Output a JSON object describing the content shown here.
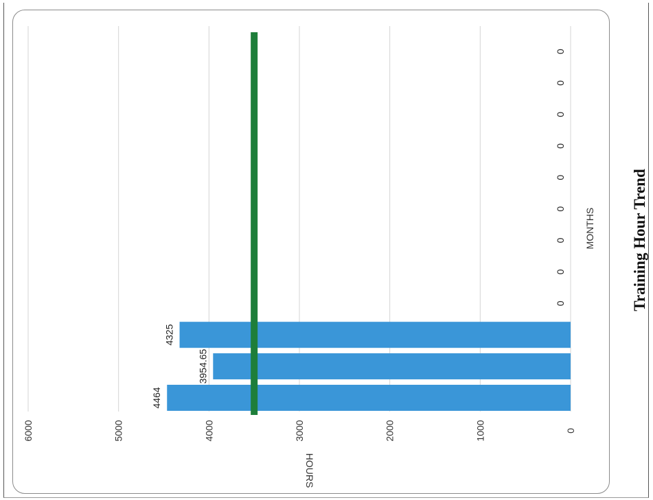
{
  "chart_data": {
    "type": "bar",
    "orientation": "horizontal",
    "rotated_page": true,
    "title": "Training Hour Trend",
    "xlabel": "HOURS",
    "ylabel": "MONTHS",
    "xlim": [
      0,
      6000
    ],
    "x_ticks": [
      0,
      1000,
      2000,
      3000,
      4000,
      5000,
      6000
    ],
    "grid": true,
    "series": [
      {
        "values": [
          4464,
          3954.65,
          4325,
          0,
          0,
          0,
          0,
          0,
          0,
          0,
          0,
          0
        ],
        "labels": [
          "4464",
          "3954.65",
          "4325",
          "0",
          "0",
          "0",
          "0",
          "0",
          "0",
          "0",
          "0",
          "0"
        ],
        "color": "#3a96d8"
      }
    ],
    "target_line": {
      "value": 3500,
      "color": "#1e7e3a"
    }
  }
}
